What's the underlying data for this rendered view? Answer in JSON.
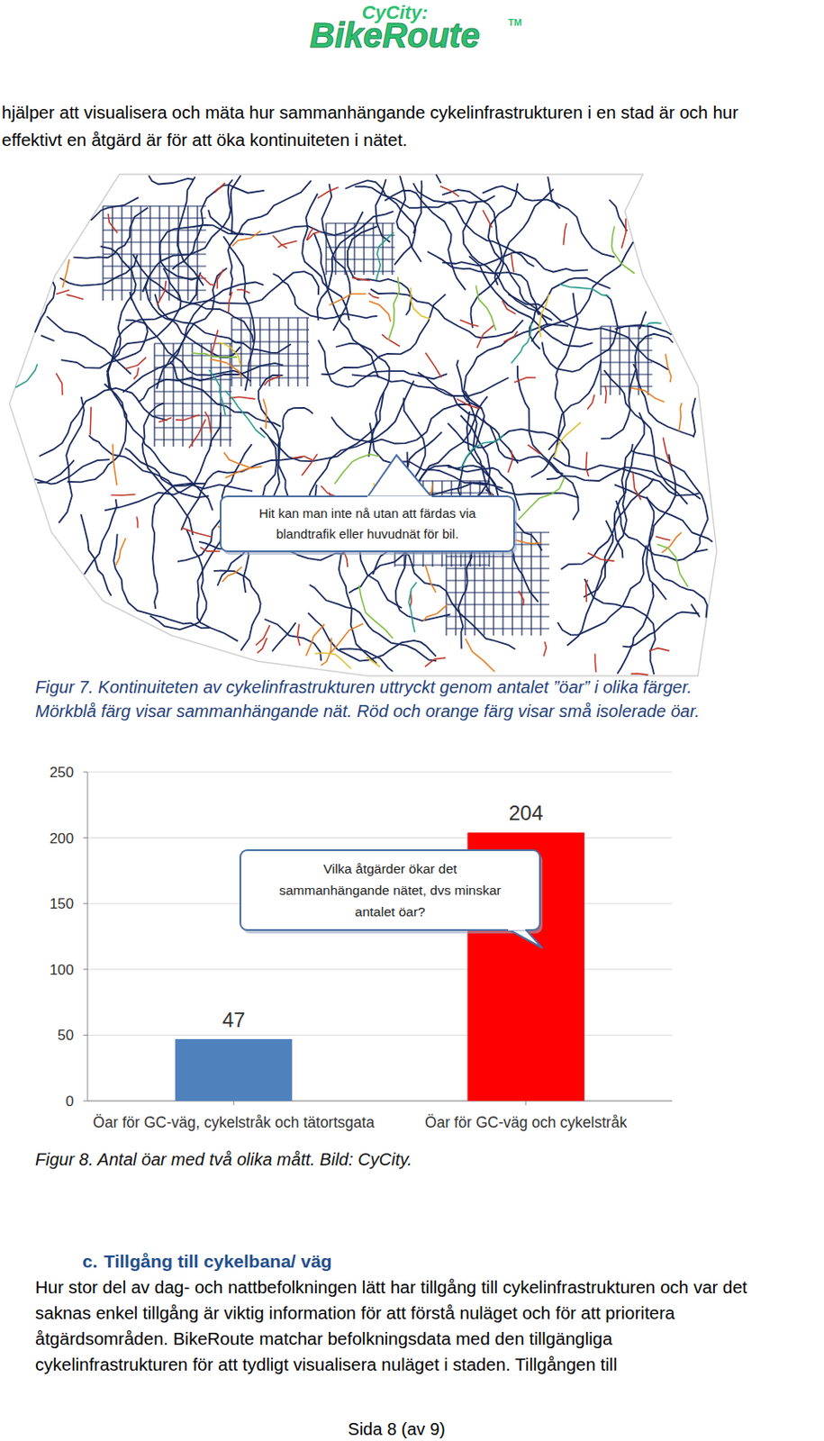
{
  "header": {
    "logo_top": "CyCity:",
    "logo_main": "BikeRoute",
    "logo_mark": "TM"
  },
  "intro": [
    "hjälper att visualisera och mäta hur sammanhängande cykelinfrastrukturen i en stad är och hur",
    "effektivt en åtgärd är för att öka kontinuiteten i nätet."
  ],
  "figure7": {
    "callout": [
      "Hit kan man inte nå utan att färdas via",
      "blandtrafik eller huvudnät för bil."
    ],
    "caption": [
      "Figur 7. Kontinuiteten av cykelinfrastrukturen uttryckt genom antalet ”öar” i olika färger.",
      "Mörkblå färg visar sammanhängande nät. Röd och orange färg visar små isolerade öar."
    ]
  },
  "chart_data": {
    "type": "bar",
    "categories": [
      "Öar för GC-väg, cykelstråk och tätortsgata",
      "Öar för GC-väg och cykelstråk"
    ],
    "values": [
      47,
      204
    ],
    "colors": [
      "#4f81bd",
      "#ff0000"
    ],
    "ylim": [
      0,
      250
    ],
    "yticks": [
      0,
      50,
      100,
      150,
      200,
      250
    ],
    "grid": true,
    "data_labels": true,
    "annotation": [
      "Vilka åtgärder ökar det",
      "sammanhängande nätet, dvs minskar",
      "antalet öar?"
    ]
  },
  "figure8": {
    "caption": "Figur 8. Antal öar med två olika mått.  Bild: CyCity."
  },
  "section": {
    "number": "c.",
    "title": "Tillgång till cykelbana/ väg",
    "lines": [
      "Hur stor del av dag- och nattbefolkningen lätt har tillgång till cykelinfrastrukturen och var det",
      "saknas enkel tillgång är viktig information för att förstå nuläget och för att prioritera",
      "åtgärdsområden. BikeRoute matchar befolkningsdata med den tillgängliga",
      "cykelinfrastrukturen för att tydligt visualisera nuläget i staden. Tillgången till"
    ]
  },
  "footer": "Sida 8 (av 9)"
}
